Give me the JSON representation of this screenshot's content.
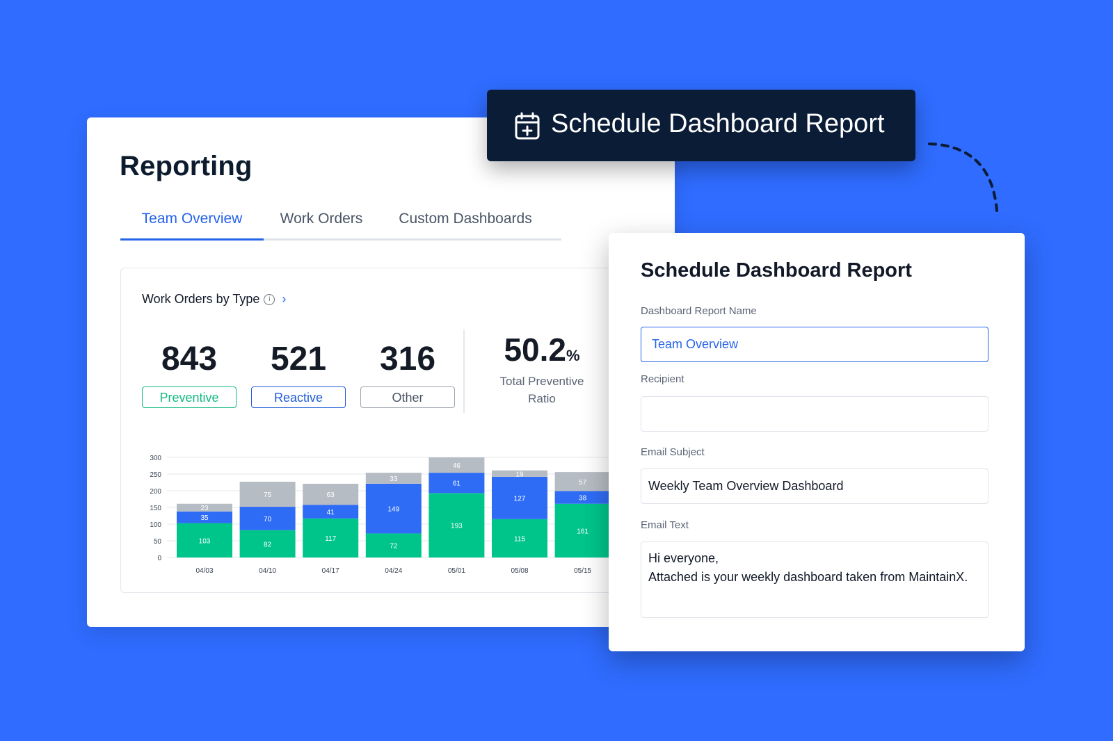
{
  "reporting": {
    "title": "Reporting",
    "tabs": [
      {
        "label": "Team Overview",
        "active": true
      },
      {
        "label": "Work Orders",
        "active": false
      },
      {
        "label": "Custom Dashboards",
        "active": false
      }
    ]
  },
  "widget": {
    "title": "Work Orders by Type",
    "stats": [
      {
        "value": "843",
        "label": "Preventive",
        "color": "#12b981"
      },
      {
        "value": "521",
        "label": "Reactive",
        "color": "#1e5bd8"
      },
      {
        "value": "316",
        "label": "Other",
        "color": "#6b7280"
      }
    ],
    "ratio": {
      "value": "50.2",
      "unit": "%",
      "label": "Total Preventive Ratio"
    }
  },
  "colors": {
    "background": "#2f6cff",
    "preventive": "#00c58a",
    "reactive": "#2f6cf6",
    "other": "#b6bcc4",
    "banner": "#0b1c36"
  },
  "chart_data": {
    "type": "bar",
    "stacked": true,
    "categories": [
      "04/03",
      "04/10",
      "04/17",
      "04/24",
      "05/01",
      "05/08",
      "05/15"
    ],
    "series": [
      {
        "name": "Preventive",
        "values": [
          103,
          82,
          117,
          72,
          193,
          115,
          161
        ]
      },
      {
        "name": "Reactive",
        "values": [
          35,
          70,
          41,
          149,
          61,
          127,
          38
        ]
      },
      {
        "name": "Other",
        "values": [
          23,
          75,
          63,
          33,
          46,
          19,
          57
        ]
      }
    ],
    "yticks": [
      0,
      50,
      100,
      150,
      200,
      250,
      300
    ],
    "ylim": [
      0,
      300
    ]
  },
  "banner": {
    "title": "Schedule Dashboard Report",
    "icon": "calendar-plus-icon"
  },
  "modal": {
    "title": "Schedule Dashboard Report",
    "report_name_label": "Dashboard Report Name",
    "report_name_value": "Team Overview",
    "recipient_label": "Recipient",
    "recipient_value": "",
    "subject_label": "Email Subject",
    "subject_value": "Weekly Team Overview Dashboard",
    "text_label": "Email Text",
    "text_value": "Hi everyone,\nAttached is your weekly dashboard taken from MaintainX."
  }
}
